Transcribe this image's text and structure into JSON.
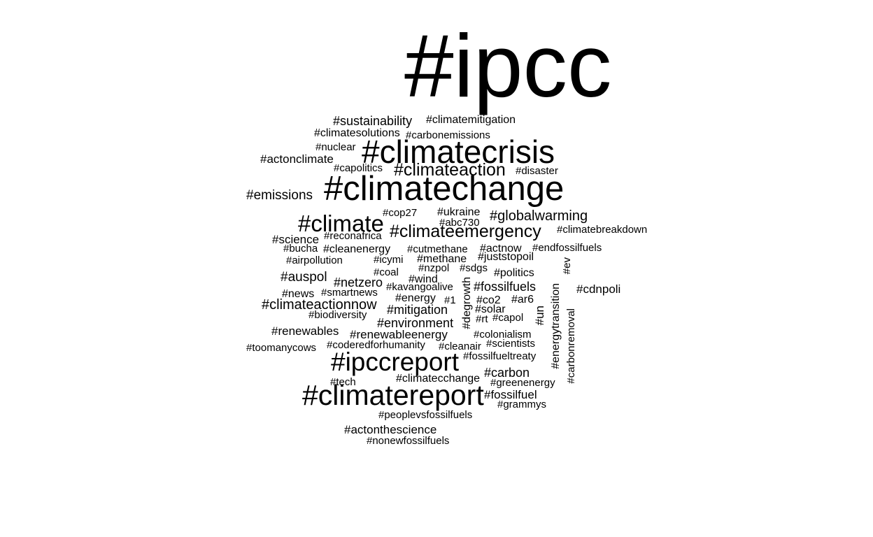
{
  "word_cloud": {
    "text_color": "#000000",
    "background": "#ffffff",
    "words": [
      "#ipcc",
      "#climatecrisis",
      "#climatechange",
      "#climatereport",
      "#ipccreport",
      "#climate",
      "#climateemergency",
      "#climateaction",
      "#globalwarming",
      "#climateactionnow",
      "#sustainability",
      "#emissions",
      "#climatemitigation",
      "#climatesolutions",
      "#carbonemissions",
      "#nuclear",
      "#actonclimate",
      "#capolitics",
      "#disaster",
      "#cop27",
      "#ukraine",
      "#abc730",
      "#climatebreakdown",
      "#science",
      "#reconafrica",
      "#bucha",
      "#cleanenergy",
      "#cutmethane",
      "#actnow",
      "#endfossilfuels",
      "#airpollution",
      "#icymi",
      "#methane",
      "#juststopoil",
      "#ev",
      "#nzpol",
      "#sdgs",
      "#coal",
      "#politics",
      "#auspol",
      "#netzero",
      "#wind",
      "#kavangoalive",
      "#fossilfuels",
      "#cdnpoli",
      "#news",
      "#smartnews",
      "#energy",
      "#1",
      "#co2",
      "#ar6",
      "#mitigation",
      "#solar",
      "#biodiversity",
      "#degrowth",
      "#rt",
      "#capol",
      "#un",
      "#environment",
      "#energytransition",
      "#renewables",
      "#renewableenergy",
      "#colonialism",
      "#carbonremoval",
      "#toomanycows",
      "#coderedforhumanity",
      "#cleanair",
      "#scientists",
      "#fossilfueltreaty",
      "#carbon",
      "#tech",
      "#climatecchange",
      "#greenenergy",
      "#fossilfuel",
      "#grammys",
      "#peoplevsfossilfuels",
      "#actonthescience",
      "#nonewfossilfuels"
    ]
  }
}
